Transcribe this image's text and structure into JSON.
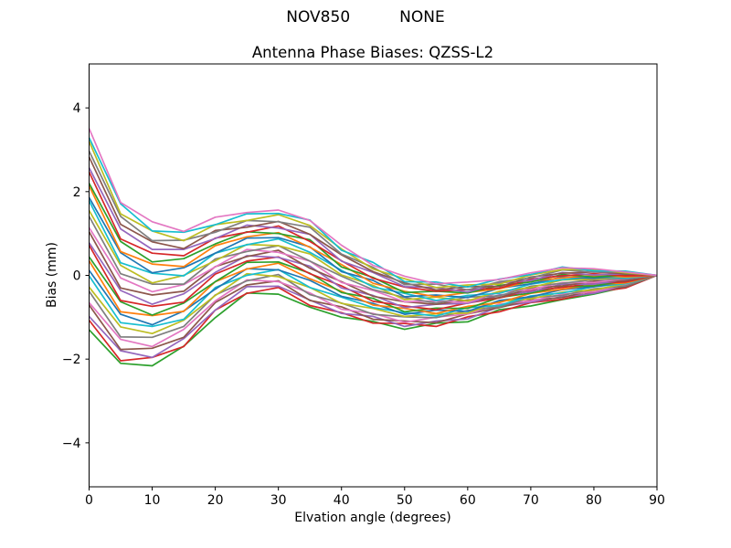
{
  "figure": {
    "suptitle": "NOV850          NONE",
    "background": "#ffffff",
    "text_color": "#000000"
  },
  "chart_data": {
    "type": "line",
    "title": "Antenna Phase Biases: QZSS-L2",
    "xlabel": "Elvation angle (degrees)",
    "ylabel": "Bias (mm)",
    "xlim": [
      0,
      90
    ],
    "ylim": [
      -5.05,
      5.05
    ],
    "grid": false,
    "legend": false,
    "xticks": [
      {
        "v": 0,
        "label": "0"
      },
      {
        "v": 10,
        "label": "10"
      },
      {
        "v": 20,
        "label": "20"
      },
      {
        "v": 30,
        "label": "30"
      },
      {
        "v": 40,
        "label": "40"
      },
      {
        "v": 50,
        "label": "50"
      },
      {
        "v": 60,
        "label": "60"
      },
      {
        "v": 70,
        "label": "70"
      },
      {
        "v": 80,
        "label": "80"
      },
      {
        "v": 90,
        "label": "90"
      }
    ],
    "yticks": [
      {
        "v": -4,
        "label": "−4"
      },
      {
        "v": -2,
        "label": "−2"
      },
      {
        "v": 0,
        "label": "0"
      },
      {
        "v": 2,
        "label": "2"
      },
      {
        "v": 4,
        "label": "4"
      }
    ],
    "n_series": 28,
    "x": [
      0,
      5,
      10,
      15,
      20,
      25,
      30,
      35,
      40,
      45,
      50,
      55,
      60,
      65,
      70,
      75,
      80,
      85,
      90
    ],
    "series_colors": [
      "#2ca02c",
      "#d62728",
      "#9467bd",
      "#8c564b",
      "#e377c2",
      "#7f7f7f",
      "#bcbd22",
      "#17becf",
      "#1f77b4",
      "#ff7f0e",
      "#2ca02c",
      "#d62728",
      "#9467bd",
      "#8c564b",
      "#e377c2",
      "#7f7f7f",
      "#bcbd22",
      "#17becf",
      "#1f77b4",
      "#ff7f0e",
      "#2ca02c",
      "#d62728",
      "#9467bd",
      "#8c564b",
      "#7f7f7f",
      "#bcbd22",
      "#17becf",
      "#e377c2"
    ],
    "bias_columns": [
      {
        "elevation": 0,
        "values": [
          -1.3,
          -1.07,
          -0.98,
          -0.71,
          -0.65,
          -0.38,
          -0.28,
          -0.01,
          0.12,
          0.35,
          0.44,
          0.72,
          0.78,
          1.04,
          1.14,
          1.41,
          1.55,
          1.78,
          1.86,
          2.14,
          2.2,
          2.47,
          2.57,
          2.83,
          2.97,
          3.2,
          3.29,
          3.51
        ]
      },
      {
        "elevation": 5,
        "values": [
          -2.1,
          -2.04,
          -1.8,
          -1.77,
          -1.53,
          -1.47,
          -1.23,
          -1.13,
          -0.93,
          -0.87,
          -0.63,
          -0.6,
          -0.36,
          -0.3,
          -0.06,
          0.04,
          0.24,
          0.3,
          0.54,
          0.57,
          0.81,
          0.87,
          1.11,
          1.22,
          1.41,
          1.47,
          1.71,
          1.74
        ]
      },
      {
        "elevation": 10,
        "values": [
          -2.16,
          -1.96,
          -1.96,
          -1.74,
          -1.7,
          -1.48,
          -1.39,
          -1.22,
          -1.18,
          -0.96,
          -0.95,
          -0.74,
          -0.69,
          -0.47,
          -0.39,
          -0.21,
          -0.18,
          0.05,
          0.06,
          0.27,
          0.32,
          0.53,
          0.62,
          0.8,
          0.83,
          1.06,
          1.06,
          1.28
        ]
      },
      {
        "elevation": 15,
        "values": [
          -1.69,
          -1.7,
          -1.51,
          -1.48,
          -1.29,
          -1.22,
          -1.07,
          -1.05,
          -0.85,
          -0.86,
          -0.66,
          -0.64,
          -0.44,
          -0.38,
          -0.22,
          -0.21,
          0.0,
          -0.01,
          0.18,
          0.21,
          0.4,
          0.47,
          0.62,
          0.64,
          0.84,
          0.83,
          1.03,
          1.05
        ]
      },
      {
        "elevation": 20,
        "values": [
          -1.01,
          -0.83,
          -0.83,
          -0.65,
          -0.61,
          -0.47,
          -0.48,
          -0.29,
          -0.33,
          -0.15,
          -0.15,
          0.03,
          0.07,
          0.21,
          0.2,
          0.39,
          0.35,
          0.53,
          0.53,
          0.71,
          0.75,
          0.89,
          0.88,
          1.07,
          1.03,
          1.21,
          1.21,
          1.39
        ]
      },
      {
        "elevation": 25,
        "values": [
          -0.42,
          -0.43,
          -0.27,
          -0.23,
          -0.11,
          -0.13,
          0.04,
          0.0,
          0.16,
          0.15,
          0.31,
          0.34,
          0.47,
          0.45,
          0.62,
          0.57,
          0.74,
          0.73,
          0.89,
          0.92,
          1.04,
          1.03,
          1.2,
          1.15,
          1.31,
          1.31,
          1.47,
          1.5
        ]
      },
      {
        "elevation": 30,
        "values": [
          -0.45,
          -0.29,
          -0.26,
          -0.13,
          -0.15,
          0.02,
          -0.03,
          0.14,
          0.13,
          0.29,
          0.32,
          0.44,
          0.43,
          0.6,
          0.55,
          0.71,
          0.71,
          0.87,
          0.9,
          1.02,
          1.0,
          1.18,
          1.13,
          1.29,
          1.28,
          1.45,
          1.48,
          1.56
        ]
      },
      {
        "elevation": 35,
        "values": [
          -0.76,
          -0.72,
          -0.59,
          -0.6,
          -0.42,
          -0.46,
          -0.29,
          -0.29,
          -0.12,
          -0.08,
          0.05,
          0.04,
          0.22,
          0.17,
          0.34,
          0.34,
          0.51,
          0.55,
          0.68,
          0.67,
          0.85,
          0.81,
          0.98,
          0.98,
          1.15,
          1.19,
          1.32,
          1.31
        ]
      },
      {
        "elevation": 40,
        "values": [
          -1.0,
          -0.89,
          -0.91,
          -0.75,
          -0.81,
          -0.66,
          -0.67,
          -0.52,
          -0.5,
          -0.38,
          -0.41,
          -0.25,
          -0.3,
          -0.15,
          -0.17,
          -0.02,
          0.01,
          0.12,
          0.09,
          0.26,
          0.2,
          0.35,
          0.34,
          0.49,
          0.51,
          0.63,
          0.6,
          0.72
        ]
      },
      {
        "elevation": 45,
        "values": [
          -1.1,
          -1.14,
          -0.98,
          -1.05,
          -0.91,
          -0.93,
          -0.79,
          -0.77,
          -0.67,
          -0.71,
          -0.55,
          -0.62,
          -0.48,
          -0.5,
          -0.36,
          -0.34,
          -0.24,
          -0.28,
          -0.12,
          -0.19,
          -0.05,
          -0.07,
          0.07,
          0.09,
          0.19,
          0.15,
          0.31,
          0.24
        ]
      },
      {
        "elevation": 50,
        "values": [
          -1.29,
          -1.15,
          -1.22,
          -1.09,
          -1.12,
          -0.99,
          -0.98,
          -0.89,
          -0.93,
          -0.79,
          -0.87,
          -0.73,
          -0.77,
          -0.63,
          -0.63,
          -0.53,
          -0.58,
          -0.43,
          -0.51,
          -0.38,
          -0.41,
          -0.28,
          -0.27,
          -0.18,
          -0.22,
          -0.08,
          -0.15,
          -0.02
        ]
      },
      {
        "elevation": 55,
        "values": [
          -1.14,
          -1.22,
          -1.09,
          -1.13,
          -1.0,
          -1.01,
          -0.92,
          -0.97,
          -0.83,
          -0.91,
          -0.78,
          -0.82,
          -0.69,
          -0.69,
          -0.61,
          -0.66,
          -0.52,
          -0.6,
          -0.47,
          -0.51,
          -0.38,
          -0.38,
          -0.29,
          -0.35,
          -0.21,
          -0.29,
          -0.16,
          -0.2
        ]
      },
      {
        "elevation": 60,
        "values": [
          -1.11,
          -0.99,
          -1.04,
          -0.92,
          -0.92,
          -0.84,
          -0.9,
          -0.77,
          -0.86,
          -0.74,
          -0.79,
          -0.66,
          -0.67,
          -0.59,
          -0.65,
          -0.52,
          -0.61,
          -0.48,
          -0.53,
          -0.41,
          -0.42,
          -0.34,
          -0.4,
          -0.27,
          -0.35,
          -0.23,
          -0.28,
          -0.16
        ]
      },
      {
        "elevation": 65,
        "values": [
          -0.82,
          -0.87,
          -0.75,
          -0.77,
          -0.69,
          -0.75,
          -0.62,
          -0.72,
          -0.6,
          -0.65,
          -0.53,
          -0.54,
          -0.47,
          -0.53,
          -0.4,
          -0.49,
          -0.38,
          -0.43,
          -0.31,
          -0.32,
          -0.24,
          -0.31,
          -0.18,
          -0.27,
          -0.15,
          -0.21,
          -0.09,
          -0.1
        ]
      },
      {
        "elevation": 70,
        "values": [
          -0.73,
          -0.65,
          -0.64,
          -0.59,
          -0.61,
          -0.53,
          -0.56,
          -0.49,
          -0.51,
          -0.43,
          -0.42,
          -0.36,
          -0.39,
          -0.31,
          -0.34,
          -0.26,
          -0.29,
          -0.21,
          -0.2,
          -0.14,
          -0.16,
          -0.09,
          -0.12,
          -0.04,
          -0.06,
          0.01,
          0.02,
          0.06
        ]
      },
      {
        "elevation": 75,
        "values": [
          -0.58,
          -0.57,
          -0.51,
          -0.53,
          -0.45,
          -0.48,
          -0.4,
          -0.42,
          -0.34,
          -0.33,
          -0.27,
          -0.29,
          -0.21,
          -0.25,
          -0.17,
          -0.19,
          -0.11,
          -0.1,
          -0.04,
          -0.06,
          0.02,
          -0.01,
          0.07,
          0.05,
          0.13,
          0.14,
          0.2,
          0.18
        ]
      },
      {
        "elevation": 80,
        "values": [
          -0.45,
          -0.4,
          -0.43,
          -0.35,
          -0.39,
          -0.32,
          -0.35,
          -0.27,
          -0.27,
          -0.22,
          -0.25,
          -0.18,
          -0.21,
          -0.14,
          -0.17,
          -0.1,
          -0.09,
          -0.04,
          -0.07,
          0.0,
          -0.04,
          0.04,
          0.01,
          0.08,
          0.08,
          0.14,
          0.11,
          0.16
        ]
      },
      {
        "elevation": 85,
        "values": [
          -0.28,
          -0.3,
          -0.25,
          -0.28,
          -0.23,
          -0.25,
          -0.2,
          -0.2,
          -0.16,
          -0.18,
          -0.13,
          -0.16,
          -0.11,
          -0.13,
          -0.08,
          -0.08,
          -0.04,
          -0.06,
          -0.01,
          -0.04,
          0.01,
          -0.01,
          0.04,
          0.04,
          0.08,
          0.06,
          0.1,
          0.08
        ]
      },
      {
        "elevation": 90,
        "values": [
          0.0,
          0.0,
          0.0,
          0.0,
          0.0,
          0.0,
          0.0,
          0.0,
          0.0,
          0.0,
          0.0,
          0.0,
          0.0,
          0.0,
          0.0,
          0.0,
          0.0,
          0.0,
          0.0,
          0.0,
          0.0,
          0.0,
          0.0,
          0.0,
          0.0,
          0.0,
          0.0,
          0.0
        ]
      }
    ]
  }
}
